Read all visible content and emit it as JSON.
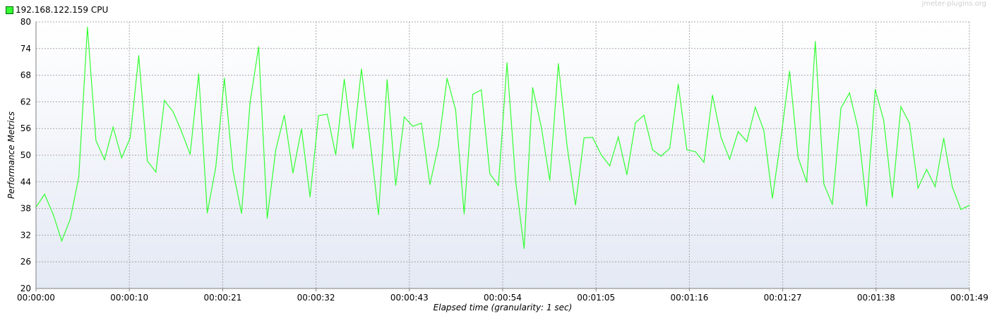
{
  "watermark": "jmeter-plugins.org",
  "chart_data": {
    "type": "line",
    "title": "",
    "xlabel": "Elapsed time (granularity: 1 sec)",
    "ylabel": "Performance Metrics",
    "ylim": [
      20,
      80
    ],
    "yticks": [
      20,
      26,
      32,
      38,
      44,
      50,
      56,
      62,
      68,
      74,
      80
    ],
    "xlim": [
      0,
      109
    ],
    "xticks": [
      {
        "value": 0,
        "label": "00:00:00"
      },
      {
        "value": 10.9,
        "label": "00:00:10"
      },
      {
        "value": 21.8,
        "label": "00:00:21"
      },
      {
        "value": 32.7,
        "label": "00:00:32"
      },
      {
        "value": 43.6,
        "label": "00:00:43"
      },
      {
        "value": 54.5,
        "label": "00:00:54"
      },
      {
        "value": 65.4,
        "label": "00:01:05"
      },
      {
        "value": 76.3,
        "label": "00:01:16"
      },
      {
        "value": 87.2,
        "label": "00:01:27"
      },
      {
        "value": 98.1,
        "label": "00:01:38"
      },
      {
        "value": 109,
        "label": "00:01:49"
      }
    ],
    "grid": true,
    "legend_position": "top-left",
    "series": [
      {
        "name": "192.168.122.159 CPU",
        "color": "#33ff33",
        "x": [
          0,
          1,
          2,
          3,
          4,
          5,
          6,
          7,
          8,
          9,
          10,
          11,
          12,
          13,
          14,
          15,
          16,
          17,
          18,
          19,
          20,
          21,
          22,
          23,
          24,
          25,
          26,
          27,
          28,
          29,
          30,
          31,
          32,
          33,
          34,
          35,
          36,
          37,
          38,
          39,
          40,
          41,
          42,
          43,
          44,
          45,
          46,
          47,
          48,
          49,
          50,
          51,
          52,
          53,
          54,
          55,
          56,
          57,
          58,
          59,
          60,
          61,
          62,
          63,
          64,
          65,
          66,
          67,
          68,
          69,
          70,
          71,
          72,
          73,
          74,
          75,
          76,
          77,
          78,
          79,
          80,
          81,
          82,
          83,
          84,
          85,
          86,
          87,
          88,
          89,
          90,
          91,
          92,
          93,
          94,
          95,
          96,
          97,
          98,
          99,
          100,
          101,
          102,
          103,
          104,
          105,
          106,
          107,
          108,
          109
        ],
        "values": [
          38.3,
          41.2,
          36.7,
          30.7,
          35.6,
          45.1,
          78.8,
          53.3,
          49,
          56.3,
          49.4,
          53.9,
          72.4,
          48.7,
          46.2,
          62.3,
          59.8,
          55.3,
          50.2,
          68.3,
          37,
          47.4,
          67.3,
          46.5,
          36.9,
          61.9,
          74.4,
          35.8,
          51.2,
          59,
          46,
          55.9,
          40.6,
          58.9,
          59.2,
          50.1,
          67.1,
          51.5,
          69.4,
          53.4,
          36.6,
          67,
          43.2,
          58.6,
          56.5,
          57.2,
          43.4,
          52.2,
          67.3,
          60.2,
          36.8,
          63.7,
          64.7,
          45.8,
          43.2,
          70.8,
          44.4,
          29,
          65.2,
          56.4,
          44.3,
          70.6,
          52.3,
          38.8,
          53.9,
          54,
          50.1,
          47.6,
          54.1,
          45.6,
          57.3,
          59,
          51.2,
          49.8,
          51.5,
          66,
          51.2,
          50.8,
          48.4,
          63.5,
          54,
          49.1,
          55.3,
          53.1,
          60.8,
          55.5,
          40.3,
          54,
          68.9,
          49.5,
          43.9,
          75.6,
          43.5,
          38.9,
          60.6,
          64,
          56,
          38.5,
          64.8,
          57.8,
          40.5,
          60.9,
          57.2,
          42.6,
          46.8,
          42.9,
          53.8,
          42.9,
          37.8,
          38.7
        ]
      }
    ]
  }
}
